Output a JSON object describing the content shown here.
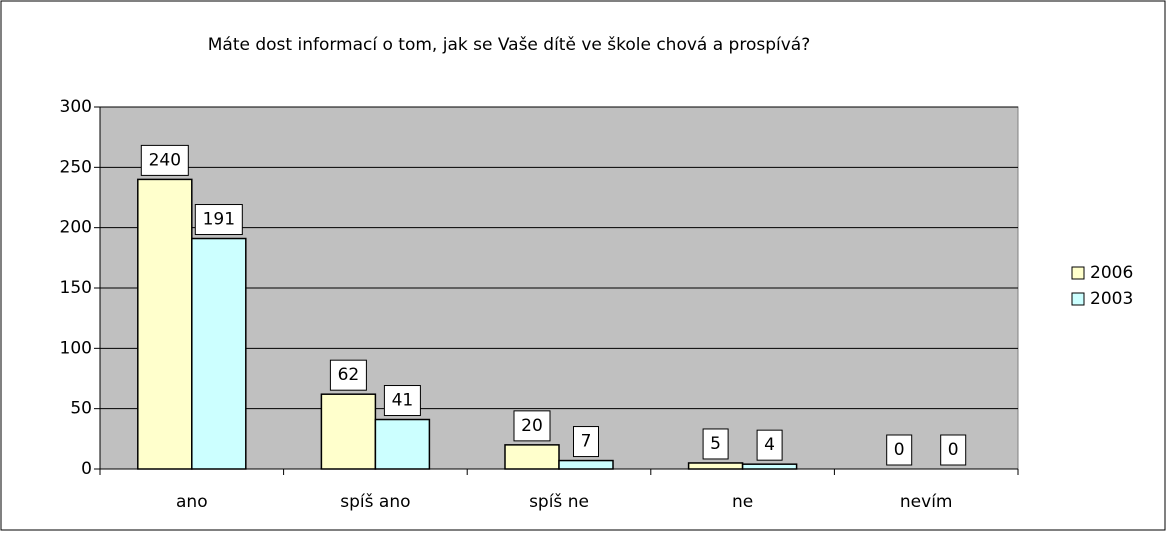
{
  "chart_data": {
    "type": "bar",
    "title": "Máte dost informací o tom, jak se Vaše dítě ve škole chová a prospívá?",
    "categories": [
      "ano",
      "spíš ano",
      "spíš ne",
      "ne",
      "nevím"
    ],
    "series": [
      {
        "name": "2006",
        "color": "#ffffcc",
        "values": [
          240,
          62,
          20,
          5,
          0
        ]
      },
      {
        "name": "2003",
        "color": "#ccffff",
        "values": [
          191,
          41,
          7,
          4,
          0
        ]
      }
    ],
    "ylim": [
      0,
      300
    ],
    "yticks": [
      0,
      50,
      100,
      150,
      200,
      250,
      300
    ],
    "grid": true,
    "legend": "right"
  }
}
